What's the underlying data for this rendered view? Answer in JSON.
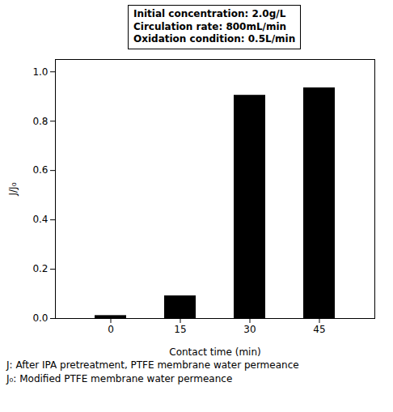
{
  "chart_data": {
    "type": "bar",
    "categories": [
      "0",
      "15",
      "30",
      "45"
    ],
    "values": [
      0.012,
      0.092,
      0.905,
      0.935
    ],
    "color": "#000000",
    "xlabel": "Contact time (min)",
    "ylabel": "J/J₀",
    "ylim": [
      0,
      1.05
    ],
    "yticks": [
      {
        "value": 0.0,
        "label": "0.0"
      },
      0.2,
      0.4,
      0.6,
      0.8,
      {
        "value": 1.0,
        "label": "1.0"
      }
    ],
    "grid": false,
    "annotations": [
      "Initial concentration: 2.0g/L",
      "Circulation rate: 800mL/min",
      "Oxidation condition: 0.5L/min"
    ],
    "caption": [
      "J: After IPA pretreatment, PTFE membrane water permeance",
      "J₀: Modified PTFE membrane water permeance"
    ]
  }
}
